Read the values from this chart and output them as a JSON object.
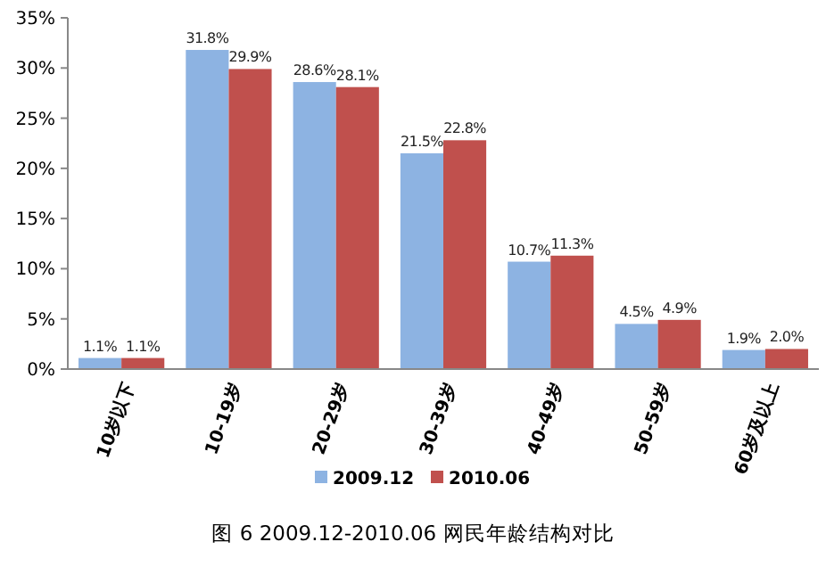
{
  "chart_data": {
    "type": "bar",
    "title": "图 6 2009.12-2010.06 网民年龄结构对比",
    "categories": [
      "10岁以下",
      "10-19岁",
      "20-29岁",
      "30-39岁",
      "40-49岁",
      "50-59岁",
      "60岁及以上"
    ],
    "series": [
      {
        "name": "2009.12",
        "color": "#8db3e2",
        "values": [
          1.1,
          31.8,
          28.6,
          21.5,
          10.7,
          4.5,
          1.9
        ],
        "value_labels": [
          "1.1%",
          "31.8%",
          "28.6%",
          "21.5%",
          "10.7%",
          "4.5%",
          "1.9%"
        ]
      },
      {
        "name": "2010.06",
        "color": "#c0504d",
        "values": [
          1.1,
          29.9,
          28.1,
          22.8,
          11.3,
          4.9,
          2.0
        ],
        "value_labels": [
          "1.1%",
          "29.9%",
          "28.1%",
          "22.8%",
          "11.3%",
          "4.9%",
          "2.0%"
        ]
      }
    ],
    "ylim": [
      0,
      35
    ],
    "yticks": [
      {
        "value": 0,
        "label": "0%"
      },
      {
        "value": 5,
        "label": "5%"
      },
      {
        "value": 10,
        "label": "10%"
      },
      {
        "value": 15,
        "label": "15%"
      },
      {
        "value": 20,
        "label": "20%"
      },
      {
        "value": 25,
        "label": "25%"
      },
      {
        "value": 30,
        "label": "30%"
      },
      {
        "value": 35,
        "label": "35%"
      }
    ],
    "grid": false,
    "legend": "bottom"
  }
}
